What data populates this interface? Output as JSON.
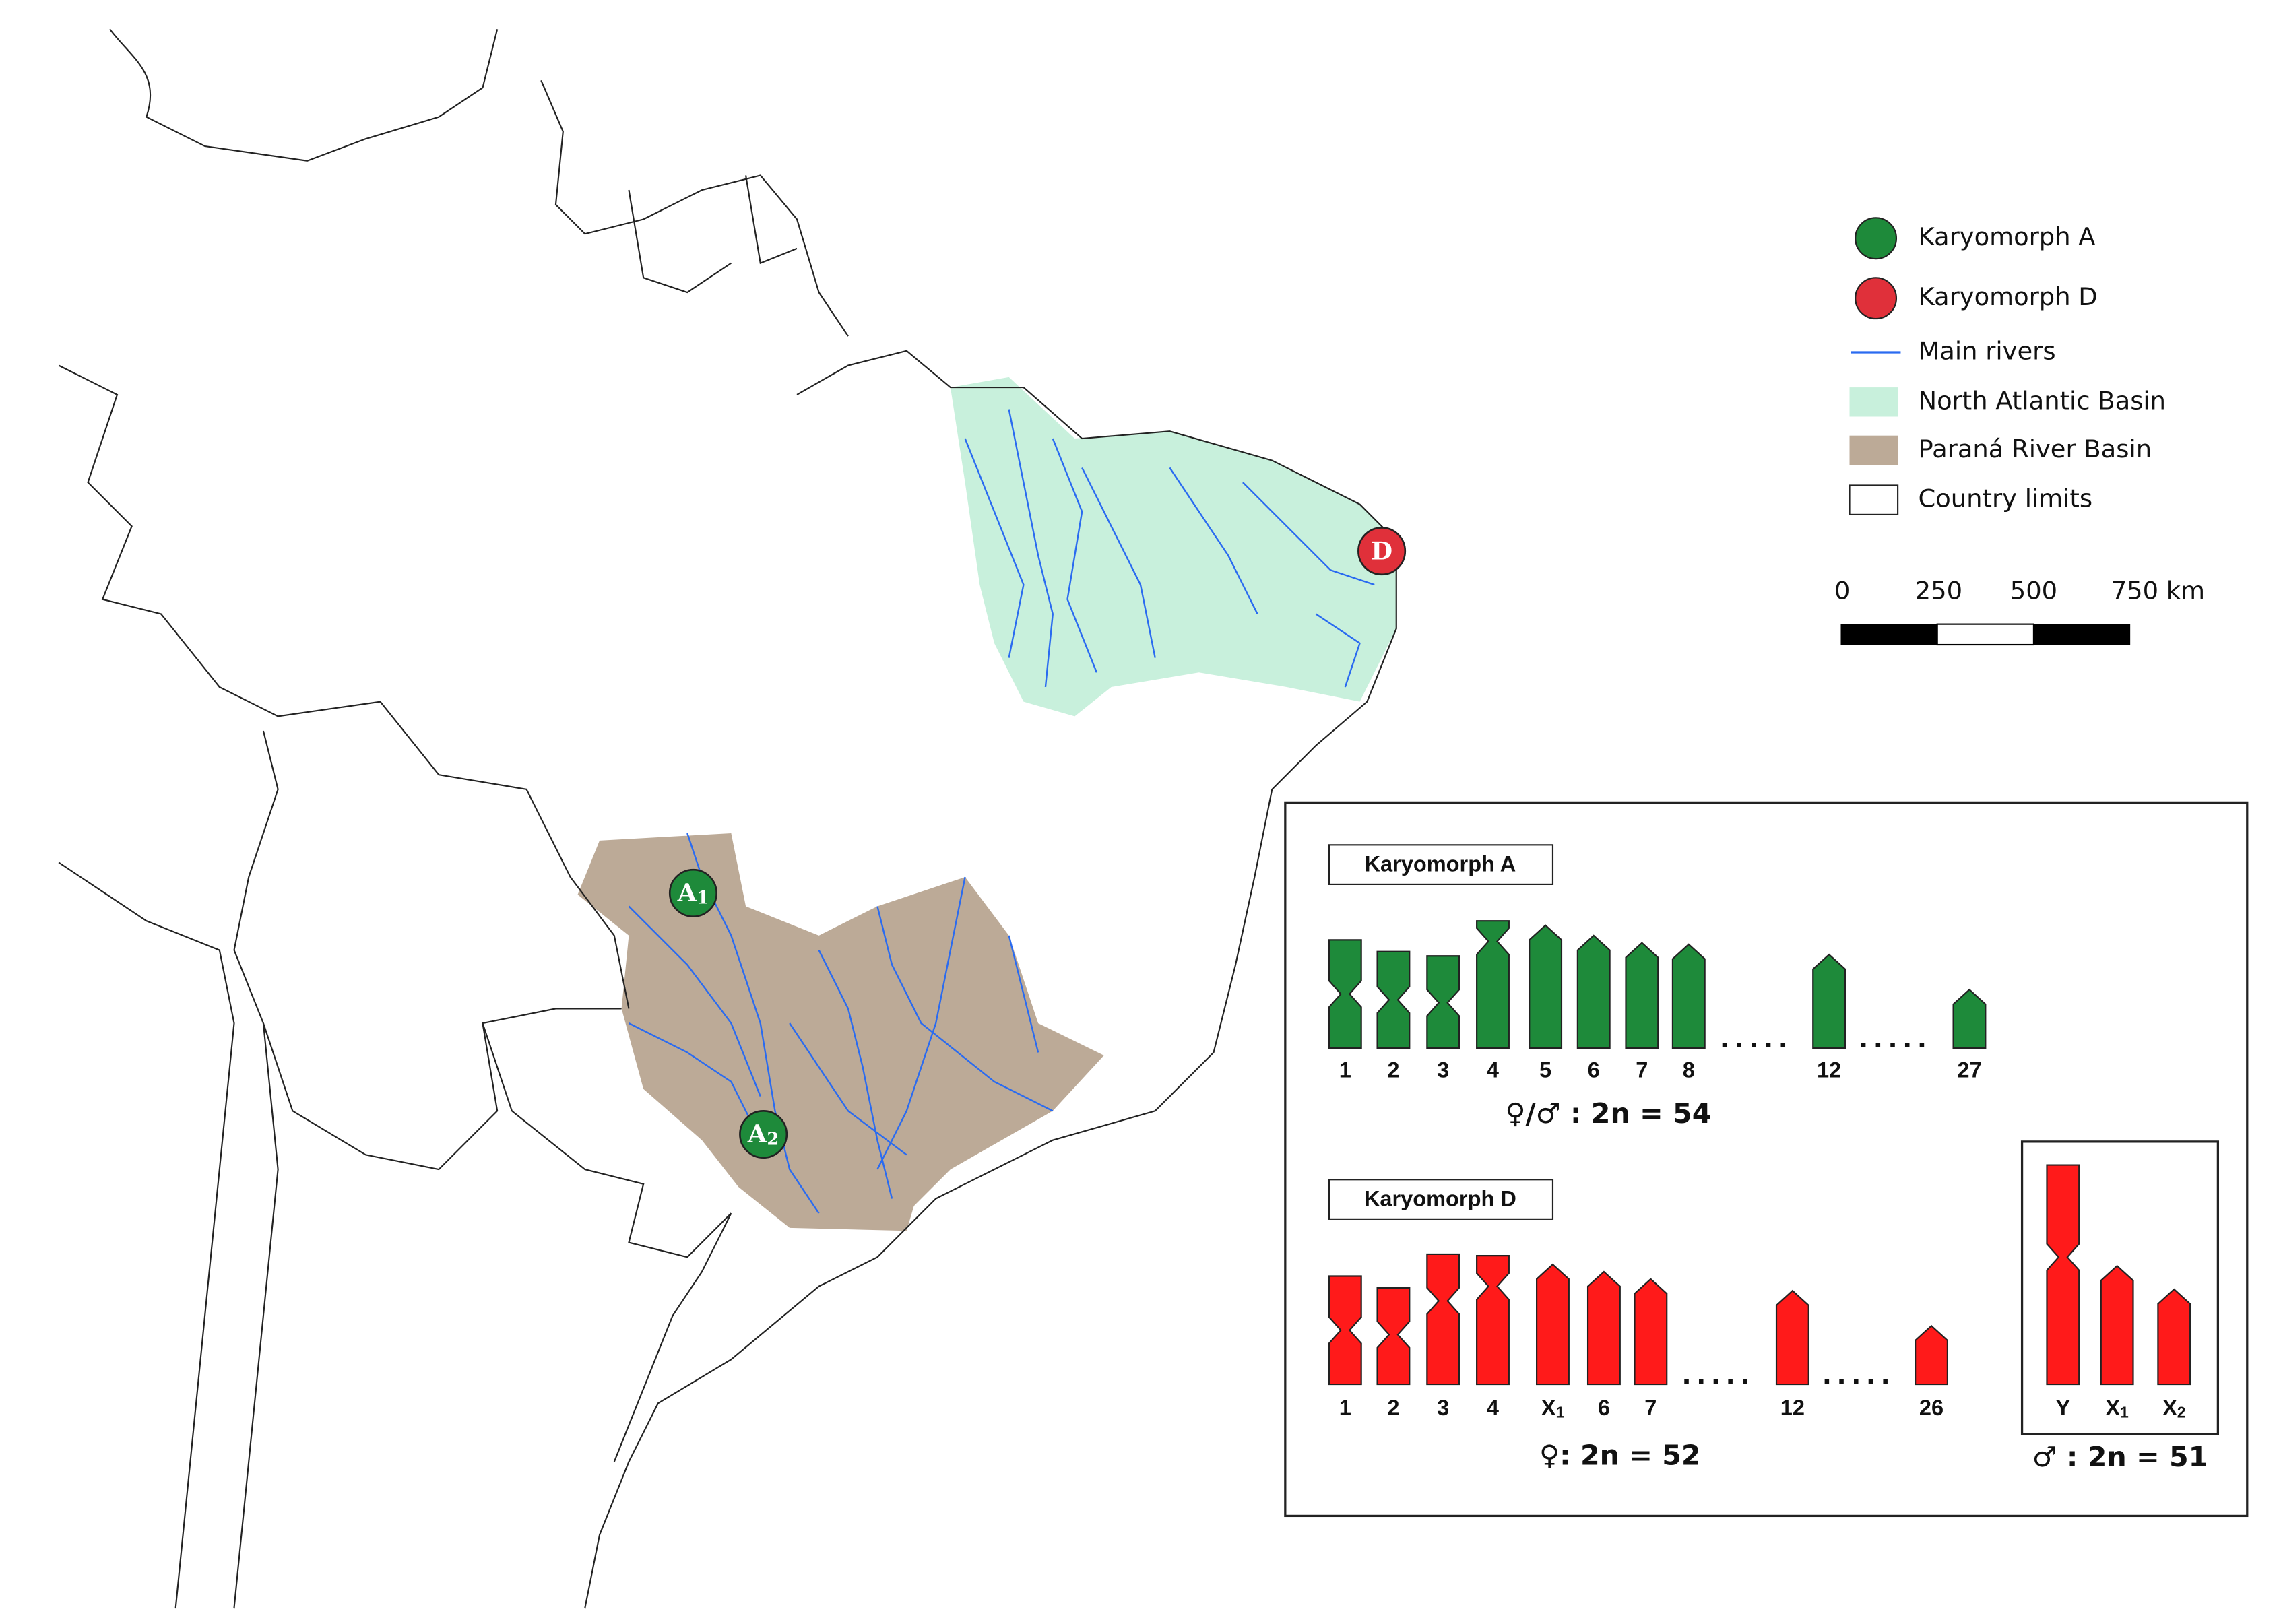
{
  "legend": [
    "Karyomorph A",
    "Karyomorph D",
    "Main rivers",
    "North Atlantic Basin",
    "Paraná River Basin",
    "Country limits"
  ],
  "scale_bar": [
    "0",
    "250",
    "500",
    "750 km"
  ],
  "map_markers": [
    {
      "label": "D"
    },
    {
      "label": "A",
      "subscript": "1"
    },
    {
      "label": "A",
      "subscript": "2"
    }
  ],
  "karyotypes": [
    {
      "title": "Karyomorph A",
      "chromosome_labels": [
        {
          "label": "1"
        },
        {
          "label": "2"
        },
        {
          "label": "3"
        },
        {
          "label": "4"
        },
        {
          "label": "5"
        },
        {
          "label": "6"
        },
        {
          "label": "7"
        },
        {
          "label": "8"
        },
        {
          "label": "12"
        },
        {
          "label": "27"
        }
      ],
      "formula": "♀/♂ : 2n = 54"
    },
    {
      "title": "Karyomorph D",
      "chromosome_labels": [
        {
          "label": "1"
        },
        {
          "label": "2"
        },
        {
          "label": "3"
        },
        {
          "label": "4"
        },
        {
          "label": "X",
          "subscript": "1"
        },
        {
          "label": "6"
        },
        {
          "label": "7"
        },
        {
          "label": "12"
        },
        {
          "label": "26"
        }
      ],
      "formula": "♀: 2n = 52",
      "sex_chromosomes": {
        "labels": [
          {
            "label": "Y"
          },
          {
            "label": "X",
            "subscript": "1"
          },
          {
            "label": "X",
            "subscript": "2"
          }
        ],
        "formula": "♂ : 2n = 51"
      }
    }
  ]
}
